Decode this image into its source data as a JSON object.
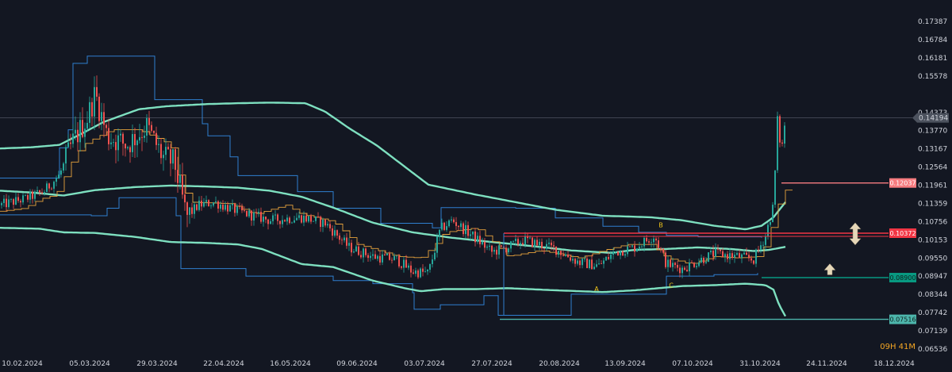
{
  "chart_data": {
    "type": "line",
    "y_axis": {
      "position": "right",
      "ylim": [
        0.0635,
        0.1768
      ],
      "ticks": [
        "0.17387",
        "0.16784",
        "0.16181",
        "0.15578",
        "0.14373",
        "0.13770",
        "0.13167",
        "0.12564",
        "0.11961",
        "0.11359",
        "0.10756",
        "0.10153",
        "0.09550",
        "0.08947",
        "0.08344",
        "0.07742",
        "0.07139",
        "0.06536"
      ]
    },
    "x_axis": {
      "ticks": [
        "10.02.2024",
        "05.03.2024",
        "29.03.2024",
        "22.04.2024",
        "16.05.2024",
        "09.06.2024",
        "03.07.2024",
        "27.07.2024",
        "20.08.2024",
        "13.09.2024",
        "07.10.2024",
        "31.10.2024",
        "24.11.2024",
        "18.12.2024"
      ]
    },
    "current_price": "0.14194",
    "price_tags": [
      {
        "label": "0.12037",
        "value": 0.12037,
        "color": "#f77c80"
      },
      {
        "label": "0.10372",
        "value": 0.10372,
        "color": "#f23645"
      },
      {
        "label": "0.08900",
        "value": 0.089,
        "color": "#089981"
      },
      {
        "label": "0.07516",
        "value": 0.07516,
        "color": "#4db6ac"
      }
    ],
    "pattern_labels": [
      "A",
      "B",
      "C"
    ],
    "timer": "09H 41M",
    "grid": false,
    "series": [
      {
        "kind": "candles",
        "color_up": "#26a69a",
        "color_down": "#ef5350"
      },
      {
        "kind": "band-upper",
        "color": "#7ee0c0"
      },
      {
        "kind": "band-middle",
        "color": "#7ee0c0"
      },
      {
        "kind": "band-lower",
        "color": "#7ee0c0"
      },
      {
        "kind": "donchian",
        "color": "#2f7fd0"
      },
      {
        "kind": "baseline",
        "color": "#e8a33c"
      }
    ]
  }
}
